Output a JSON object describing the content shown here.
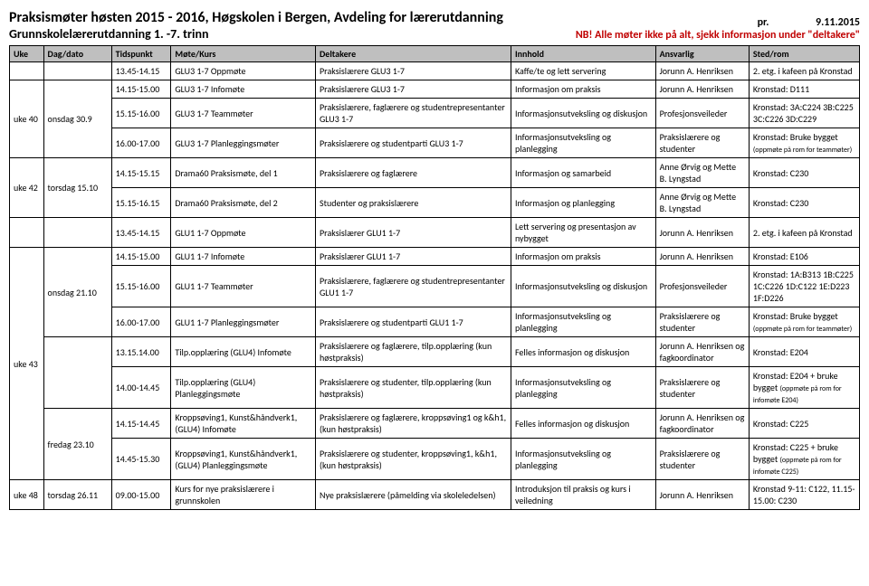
{
  "header": {
    "title_main": "Praksismøter høsten 2015 - 2016, Høgskolen i Bergen, Avdeling for lærerutdanning",
    "title_sub": "Grunnskolelærerutdanning 1. -7. trinn",
    "right_pr": "pr.",
    "right_date": "9.11.2015",
    "right_note": "NB! Alle møter ikke på alt, sjekk informasjon under \"deltakere\""
  },
  "columns": [
    "Uke",
    "Dag/dato",
    "Tidspunkt",
    "Møte/Kurs",
    "Deltakere",
    "Innhold",
    "Ansvarlig",
    "Sted/rom"
  ],
  "rows": [
    {
      "uke": "",
      "dag": "",
      "tids": "13.45-14.15",
      "mote": "GLU3 1-7 Oppmøte",
      "delt": "Praksislærere GLU3 1-7",
      "inn": "Kaffe/te og lett servering",
      "ans": "Jorunn A. Henriksen",
      "sted": "2. etg. i kafeen på Kronstad"
    },
    {
      "uke": "uke 40",
      "dag": "onsdag 30.9",
      "tids": "14.15-15.00",
      "mote": "GLU3 1-7 Infomøte",
      "delt": "Praksislærere GLU3 1-7",
      "inn": "Informasjon om praksis",
      "ans": "Jorunn A. Henriksen",
      "sted": "Kronstad: D111",
      "uke_rs": 3,
      "dag_rs": 3
    },
    {
      "tids": "15.15-16.00",
      "mote": "GLU3 1-7 Teammøter",
      "delt": "Praksislærere, faglærere og studentrepresentanter GLU3 1-7",
      "inn": "Informasjonsutveksling og diskusjon",
      "ans": "Profesjonsveileder",
      "sted": "Kronstad: 3A:C224 3B:C225 3C:C226 3D:C229"
    },
    {
      "tids": "16.00-17.00",
      "mote": "GLU3 1-7 Planleggingsmøter",
      "delt": "Praksislærere og studentparti GLU3 1-7",
      "inn": "Informasjonsutveksling og planlegging",
      "ans": "Praksislærere og studenter",
      "sted": "Kronstad: Bruke bygget ",
      "sted_sub": "(oppmøte på rom for teammøter)"
    },
    {
      "uke": "uke 42",
      "dag": "torsdag 15.10",
      "tids": "14.15-15.15",
      "mote": "Drama60 Praksismøte, del 1",
      "delt": "Praksislærere og faglærere",
      "inn": "Informasjon og samarbeid",
      "ans": "Anne Ørvig og Mette B. Lyngstad",
      "sted": "Kronstad: C230",
      "uke_rs": 2,
      "dag_rs": 2
    },
    {
      "tids": "15.15-16.15",
      "mote": "Drama60 Praksismøte, del 2",
      "delt": "Studenter og praksislærere",
      "inn": "Informasjon og planlegging",
      "ans": "Anne Ørvig og Mette B. Lyngstad",
      "sted": "Kronstad: C230"
    },
    {
      "uke": "",
      "dag": "",
      "tids": "13.45-14.15",
      "mote": "GLU1 1-7 Oppmøte",
      "delt": "Praksislærer GLU1 1-7",
      "inn": "Lett servering og presentasjon av nybygget",
      "ans": "Jorunn A. Henriksen",
      "sted": "2. etg. i kafeen på Kronstad"
    },
    {
      "uke": "uke 43",
      "dag": "onsdag 21.10",
      "tids": "14.15-15.00",
      "mote": "GLU1 1-7 Infomøte",
      "delt": "Praksislærer GLU1 1-7",
      "inn": "Informasjon om praksis",
      "ans": "Jorunn A. Henriksen",
      "sted": "Kronstad: E106",
      "uke_rs": 7,
      "dag_rs": 3
    },
    {
      "tids": "15.15-16.00",
      "mote": "GLU1 1-7 Teammøter",
      "delt": "Praksislærere, faglærere og studentrepresentanter GLU1 1-7",
      "inn": "Informasjonsutveksling og diskusjon",
      "ans": "Profesjonsveileder",
      "sted": "Kronstad: 1A:B313 1B:C225 1C:C226 1D:C122 1E:D223 1F:D226"
    },
    {
      "tids": "16.00-17.00",
      "mote": "GLU1 1-7 Planleggingsmøter",
      "delt": "Praksislærere og studentparti GLU1 1-7",
      "inn": "Informasjonsutveksling og planlegging",
      "ans": "Praksislærere og studenter",
      "sted": "Kronstad: Bruke bygget ",
      "sted_sub": "(oppmøte på rom for teammøter)"
    },
    {
      "dag": "",
      "tids": "13.15.14.00",
      "mote": "Tilp.opplæring (GLU4) Infomøte",
      "delt": "Praksislærere og faglærere, tilp.opplæring (kun høstpraksis)",
      "inn": "Felles informasjon og diskusjon",
      "ans": "Jorunn A. Henriksen og fagkoordinator",
      "sted": "Kronstad: E204",
      "dag_rs": 2
    },
    {
      "tids": "14.00-14.45",
      "mote": "Tilp.opplæring (GLU4) Planleggingsmøte",
      "delt": "Praksislærere og studenter, tilp.opplæring (kun høstpraksis)",
      "inn": "Informasjonsutveksling og planlegging",
      "ans": "Praksislærere og studenter",
      "sted": "Kronstad: E204 + bruke bygget ",
      "sted_sub": "(oppmøte på rom for infomøte E204)"
    },
    {
      "dag": "fredag 23.10",
      "tids": "14.15-14.45",
      "mote": "Kroppsøving1, Kunst&håndverk1, (GLU4)  Infomøte",
      "delt": "Praksislærere og faglærere, kroppsøving1 og k&h1, (kun høstpraksis)",
      "inn": "Felles informasjon og diskusjon",
      "ans": "Jorunn A. Henriksen og fagkoordinator",
      "sted": "Kronstad: C225",
      "dag_rs": 2
    },
    {
      "tids": "14.45-15.30",
      "mote": "Kroppsøving1, Kunst&håndverk1, (GLU4) Planleggingsmøte",
      "delt": "Praksislærere og studenter, kroppsøving1, k&h1, (kun høstpraksis)",
      "inn": "Informasjonsutveksling og planlegging",
      "ans": "Praksislærere og studenter",
      "sted": "Kronstad: C225 + bruke bygget ",
      "sted_sub": "(oppmøte på rom for infomøte C225)"
    },
    {
      "uke": "uke 48",
      "dag": "torsdag 26.11",
      "tids": "09.00-15.00",
      "mote": "Kurs for nye praksislærere i grunnskolen",
      "delt": "Nye praksislærere (påmelding via skoleledelsen)",
      "inn": "Introduksjon til praksis og kurs i veiledning",
      "ans": "Jorunn A. Henriksen",
      "sted": "Kronstad 9-11: C122, 11.15-15.00: C230"
    }
  ]
}
